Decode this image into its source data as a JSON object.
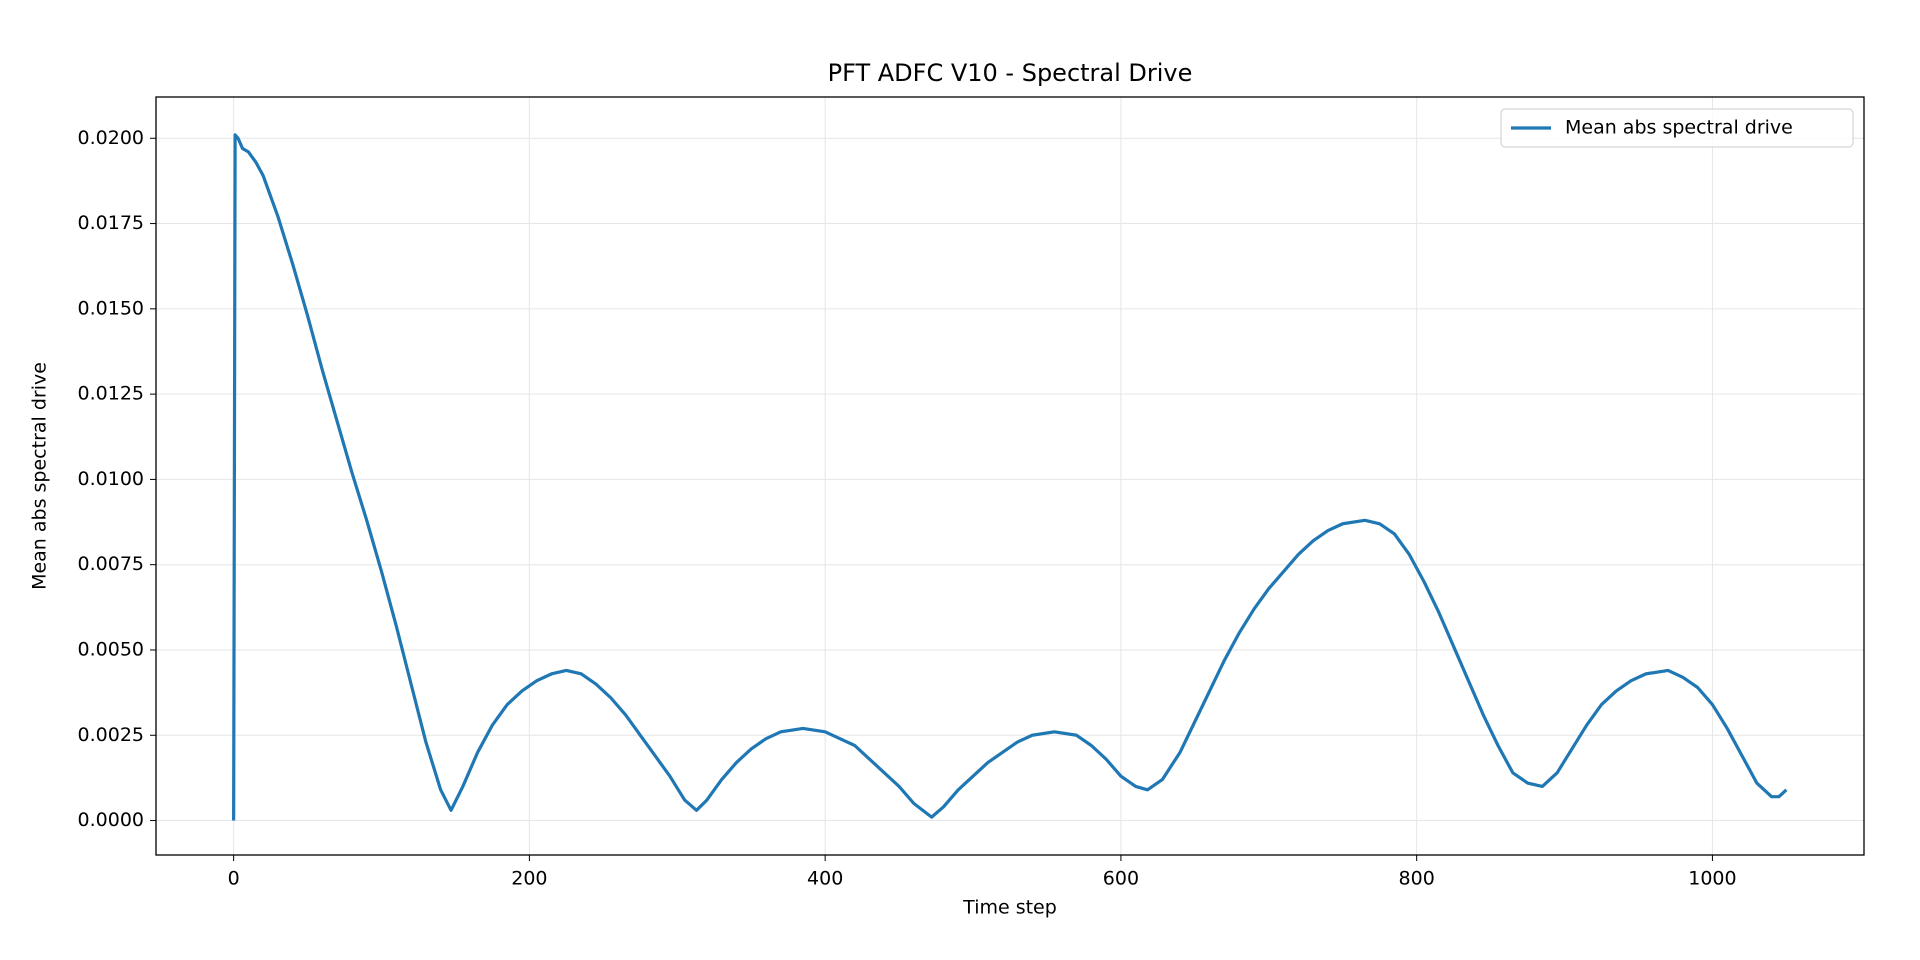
{
  "chart_data": {
    "type": "line",
    "title": "PFT ADFC V10 - Spectral Drive",
    "xlabel": "Time step",
    "ylabel": "Mean abs spectral drive",
    "x": [
      0,
      1,
      3,
      6,
      10,
      15,
      20,
      30,
      40,
      50,
      60,
      70,
      80,
      90,
      100,
      110,
      120,
      130,
      140,
      147,
      155,
      165,
      175,
      185,
      195,
      205,
      215,
      225,
      235,
      245,
      255,
      265,
      275,
      285,
      295,
      305,
      313,
      320,
      330,
      340,
      350,
      360,
      370,
      385,
      400,
      410,
      420,
      430,
      440,
      450,
      460,
      472,
      480,
      490,
      500,
      510,
      520,
      530,
      540,
      555,
      570,
      580,
      590,
      600,
      610,
      618,
      628,
      640,
      650,
      660,
      670,
      680,
      690,
      700,
      710,
      720,
      730,
      740,
      750,
      765,
      775,
      785,
      795,
      805,
      815,
      825,
      835,
      845,
      855,
      865,
      875,
      885,
      895,
      905,
      915,
      925,
      935,
      945,
      955,
      970,
      980,
      990,
      1000,
      1010,
      1020,
      1030,
      1040,
      1045,
      1050
    ],
    "series": [
      {
        "name": "Mean abs spectral drive",
        "color": "#1f77b4",
        "values": [
          0.0,
          0.0201,
          0.02,
          0.0197,
          0.0196,
          0.0193,
          0.0189,
          0.0177,
          0.0163,
          0.0148,
          0.0132,
          0.0117,
          0.0102,
          0.0088,
          0.0073,
          0.0057,
          0.004,
          0.0023,
          0.0009,
          0.0003,
          0.001,
          0.002,
          0.0028,
          0.0034,
          0.0038,
          0.0041,
          0.0043,
          0.0044,
          0.0043,
          0.004,
          0.0036,
          0.0031,
          0.0025,
          0.0019,
          0.0013,
          0.0006,
          0.0003,
          0.0006,
          0.0012,
          0.0017,
          0.0021,
          0.0024,
          0.0026,
          0.0027,
          0.0026,
          0.0024,
          0.0022,
          0.0018,
          0.0014,
          0.001,
          0.0005,
          0.0001,
          0.0004,
          0.0009,
          0.0013,
          0.0017,
          0.002,
          0.0023,
          0.0025,
          0.0026,
          0.0025,
          0.0022,
          0.0018,
          0.0013,
          0.001,
          0.0009,
          0.0012,
          0.002,
          0.0029,
          0.0038,
          0.0047,
          0.0055,
          0.0062,
          0.0068,
          0.0073,
          0.0078,
          0.0082,
          0.0085,
          0.0087,
          0.0088,
          0.0087,
          0.0084,
          0.0078,
          0.007,
          0.0061,
          0.0051,
          0.0041,
          0.0031,
          0.0022,
          0.0014,
          0.0011,
          0.001,
          0.0014,
          0.0021,
          0.0028,
          0.0034,
          0.0038,
          0.0041,
          0.0043,
          0.0044,
          0.0042,
          0.0039,
          0.0034,
          0.0027,
          0.0019,
          0.0011,
          0.0007,
          0.0007,
          0.0009
        ]
      }
    ],
    "xlim": [
      -52.5,
      1102.5
    ],
    "xticks": [
      0,
      200,
      400,
      600,
      800,
      1000
    ],
    "ylim": [
      -0.00101,
      0.02121
    ],
    "yticks": [
      {
        "value": 0,
        "label": "0.0000"
      },
      {
        "value": 0.0025,
        "label": "0.0025"
      },
      {
        "value": 0.005,
        "label": "0.0050"
      },
      {
        "value": 0.0075,
        "label": "0.0075"
      },
      {
        "value": 0.01,
        "label": "0.0100"
      },
      {
        "value": 0.0125,
        "label": "0.0125"
      },
      {
        "value": 0.015,
        "label": "0.0150"
      },
      {
        "value": 0.0175,
        "label": "0.0175"
      },
      {
        "value": 0.02,
        "label": "0.0200"
      }
    ],
    "grid": true,
    "legend": "upper right"
  }
}
